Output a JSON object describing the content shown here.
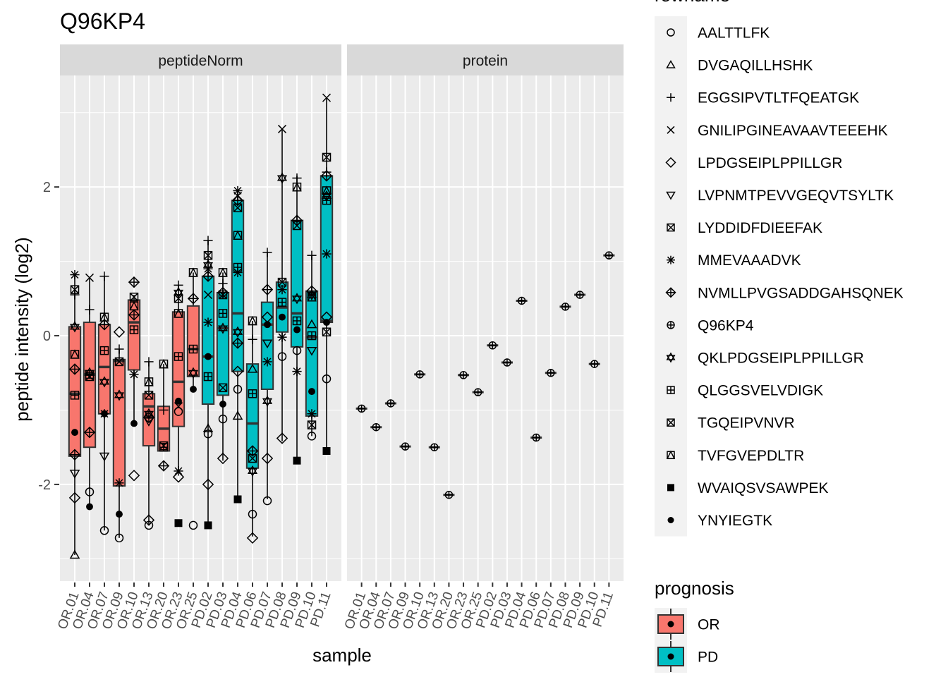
{
  "chart_data": {
    "type": "boxplot",
    "title": "Q96KP4",
    "xlabel": "sample",
    "ylabel": "peptide intensity (log2)",
    "ylim": [
      -3.3,
      3.5
    ],
    "y_ticks": [
      -2,
      0,
      2
    ],
    "panels": [
      "peptideNorm",
      "protein"
    ],
    "samples": [
      "OR.01",
      "OR.04",
      "OR.07",
      "OR.09",
      "OR.10",
      "OR.13",
      "OR.20",
      "OR.23",
      "OR.25",
      "PD.02",
      "PD.03",
      "PD.04",
      "PD.06",
      "PD.07",
      "PD.08",
      "PD.09",
      "PD.10",
      "PD.11"
    ],
    "prognosis": [
      "OR",
      "OR",
      "OR",
      "OR",
      "OR",
      "OR",
      "OR",
      "OR",
      "OR",
      "PD",
      "PD",
      "PD",
      "PD",
      "PD",
      "PD",
      "PD",
      "PD",
      "PD"
    ],
    "boxes": [
      {
        "q1": -1.62,
        "median": -0.78,
        "q3": 0.12,
        "lo": -2.95,
        "hi": 0.82
      },
      {
        "q1": -1.5,
        "median": -0.52,
        "q3": 0.18,
        "lo": -2.3,
        "hi": 0.78
      },
      {
        "q1": -1.05,
        "median": -0.42,
        "q3": 0.15,
        "lo": -2.62,
        "hi": 0.8
      },
      {
        "q1": -2.02,
        "median": -0.34,
        "q3": -0.32,
        "lo": -2.72,
        "hi": -0.18
      },
      {
        "q1": -0.46,
        "median": 0.18,
        "q3": 0.48,
        "lo": -1.18,
        "hi": 0.55
      },
      {
        "q1": -1.48,
        "median": -0.95,
        "q3": -0.78,
        "lo": -2.55,
        "hi": -0.35
      },
      {
        "q1": -1.55,
        "median": -1.25,
        "q3": -0.95,
        "lo": -1.55,
        "hi": -0.38
      },
      {
        "q1": -1.22,
        "median": -0.62,
        "q3": 0.32,
        "lo": -1.85,
        "hi": 0.68
      },
      {
        "q1": -0.55,
        "median": -0.18,
        "q3": 0.4,
        "lo": -0.72,
        "hi": 0.85
      },
      {
        "q1": -0.92,
        "median": -0.28,
        "q3": 0.8,
        "lo": -2.55,
        "hi": 1.28
      },
      {
        "q1": -0.8,
        "median": 0.1,
        "q3": 0.58,
        "lo": -1.68,
        "hi": 0.85
      },
      {
        "q1": -0.48,
        "median": 0.3,
        "q3": 1.82,
        "lo": -2.2,
        "hi": 1.95
      },
      {
        "q1": -1.78,
        "median": -1.18,
        "q3": -0.38,
        "lo": -2.7,
        "hi": 0.2
      },
      {
        "q1": -0.72,
        "median": 0.15,
        "q3": 0.45,
        "lo": -2.2,
        "hi": 1.12
      },
      {
        "q1": 0.05,
        "median": 0.38,
        "q3": 0.72,
        "lo": -1.42,
        "hi": 2.78
      },
      {
        "q1": -0.15,
        "median": 0.3,
        "q3": 1.55,
        "lo": -1.68,
        "hi": 2.15
      },
      {
        "q1": -1.08,
        "median": -0.02,
        "q3": 0.6,
        "lo": -1.35,
        "hi": 1.08
      },
      {
        "q1": 0.18,
        "median": 0.2,
        "q3": 2.15,
        "lo": -1.55,
        "hi": 3.2
      }
    ],
    "peptide_points": [
      [
        [
          -1.3,
          "nfill"
        ],
        [
          0.62,
          "boxx"
        ],
        [
          0.82,
          "ast"
        ],
        [
          -1.6,
          "diamp"
        ],
        [
          -0.8,
          "sqplus"
        ],
        [
          -0.45,
          "diamp"
        ],
        [
          -0.25,
          "sqtri"
        ],
        [
          0.12,
          "star"
        ],
        [
          -1.85,
          "tdown"
        ],
        [
          -2.18,
          "diam"
        ],
        [
          -2.95,
          "tri"
        ],
        [
          0.55,
          "plus"
        ]
      ],
      [
        [
          -2.3,
          "nfill"
        ],
        [
          -2.1,
          "circ"
        ],
        [
          0.78,
          "x"
        ],
        [
          0.35,
          "plus"
        ],
        [
          -0.52,
          "sqplus"
        ],
        [
          -1.3,
          "diamp"
        ],
        [
          -0.5,
          "star"
        ],
        [
          -0.55,
          "boxx"
        ]
      ],
      [
        [
          -1.05,
          "nfill"
        ],
        [
          0.25,
          "sqtri"
        ],
        [
          0.8,
          "plus"
        ],
        [
          -0.2,
          "sqplus"
        ],
        [
          -0.62,
          "star"
        ],
        [
          -1.62,
          "tdown"
        ],
        [
          0.15,
          "diamp"
        ],
        [
          -2.62,
          "circ"
        ],
        [
          -1.05,
          "ast"
        ]
      ],
      [
        [
          -2.4,
          "nfill"
        ],
        [
          -2.72,
          "circ"
        ],
        [
          -1.98,
          "ast"
        ],
        [
          0.05,
          "diam"
        ],
        [
          -0.35,
          "boxx"
        ],
        [
          -0.8,
          "star"
        ],
        [
          -0.18,
          "plus"
        ]
      ],
      [
        [
          -1.18,
          "nfill"
        ],
        [
          0.72,
          "diamp"
        ],
        [
          0.28,
          "diamp"
        ],
        [
          0.08,
          "sqplus"
        ],
        [
          0.52,
          "boxx"
        ],
        [
          -0.52,
          "ast"
        ],
        [
          -1.88,
          "diam"
        ],
        [
          0.4,
          "sqtri"
        ]
      ],
      [
        [
          -2.55,
          "circ"
        ],
        [
          -2.48,
          "diam"
        ],
        [
          -1.05,
          "star"
        ],
        [
          -0.8,
          "boxx"
        ],
        [
          -1.1,
          "diamp"
        ],
        [
          -0.62,
          "sqtri"
        ],
        [
          -0.35,
          "plus"
        ],
        [
          -1.15,
          "tdown"
        ]
      ],
      [
        [
          -1.5,
          "sqplus"
        ],
        [
          -1.75,
          "diamp"
        ],
        [
          -0.38,
          "sqtri"
        ],
        [
          -1.0,
          "plus"
        ],
        [
          -1.48,
          "boxx"
        ]
      ],
      [
        [
          -2.52,
          "sq"
        ],
        [
          -0.88,
          "nfill"
        ],
        [
          -1.02,
          "circ"
        ],
        [
          -1.82,
          "ast"
        ],
        [
          -1.9,
          "diam"
        ],
        [
          0.68,
          "plus"
        ],
        [
          0.5,
          "boxx"
        ],
        [
          0.58,
          "star"
        ],
        [
          -0.28,
          "sqplus"
        ],
        [
          -0.95,
          "x"
        ],
        [
          0.3,
          "sqtri"
        ]
      ],
      [
        [
          -0.72,
          "nfill"
        ],
        [
          -2.55,
          "circ"
        ],
        [
          0.85,
          "sqtri"
        ],
        [
          0.5,
          "diamp"
        ],
        [
          -0.18,
          "sqplus"
        ],
        [
          -0.5,
          "star"
        ]
      ],
      [
        [
          -2.55,
          "sq"
        ],
        [
          -1.32,
          "circ"
        ],
        [
          -2.0,
          "diam"
        ],
        [
          1.28,
          "plus"
        ],
        [
          1.08,
          "boxx"
        ],
        [
          0.9,
          "ast"
        ],
        [
          0.55,
          "x"
        ],
        [
          0.18,
          "ast"
        ],
        [
          -0.55,
          "sqplus"
        ],
        [
          -0.28,
          "nfill"
        ],
        [
          -1.25,
          "tri"
        ],
        [
          0.8,
          "diamp"
        ],
        [
          0.95,
          "star"
        ]
      ],
      [
        [
          -0.92,
          "nfill"
        ],
        [
          -1.12,
          "circ"
        ],
        [
          -1.65,
          "diam"
        ],
        [
          0.85,
          "sqtri"
        ],
        [
          0.7,
          "plus"
        ],
        [
          0.3,
          "sqplus"
        ],
        [
          0.58,
          "diamp"
        ],
        [
          0.1,
          "star"
        ],
        [
          -0.7,
          "boxx"
        ],
        [
          0.55,
          "boxx"
        ]
      ],
      [
        [
          -2.2,
          "sq"
        ],
        [
          -0.72,
          "circ"
        ],
        [
          -1.08,
          "tri"
        ],
        [
          1.95,
          "ast"
        ],
        [
          1.88,
          "x"
        ],
        [
          1.82,
          "diamp"
        ],
        [
          1.72,
          "boxx"
        ],
        [
          1.35,
          "sqtri"
        ],
        [
          0.92,
          "sqplus"
        ],
        [
          0.85,
          "ast"
        ],
        [
          0.05,
          "star"
        ],
        [
          -0.48,
          "diam"
        ],
        [
          -0.1,
          "diamp"
        ]
      ],
      [
        [
          -2.4,
          "circ"
        ],
        [
          -2.72,
          "diam"
        ],
        [
          -1.82,
          "star"
        ],
        [
          -1.65,
          "boxx"
        ],
        [
          -0.78,
          "sqplus"
        ],
        [
          -0.45,
          "tri"
        ],
        [
          0.2,
          "sqtri"
        ],
        [
          -0.05,
          "plus"
        ],
        [
          -1.55,
          "diamp"
        ]
      ],
      [
        [
          -2.22,
          "circ"
        ],
        [
          -1.65,
          "diam"
        ],
        [
          -0.88,
          "star"
        ],
        [
          -0.35,
          "ast"
        ],
        [
          0.15,
          "nfill"
        ],
        [
          0.62,
          "diamp"
        ],
        [
          1.12,
          "plus"
        ],
        [
          0.25,
          "diam"
        ],
        [
          -0.1,
          "tdown"
        ]
      ],
      [
        [
          -0.28,
          "circ"
        ],
        [
          -1.38,
          "diam"
        ],
        [
          2.78,
          "x"
        ],
        [
          2.12,
          "star"
        ],
        [
          0.72,
          "boxx"
        ],
        [
          0.62,
          "ast"
        ],
        [
          0.45,
          "sqplus"
        ],
        [
          0.25,
          "nfill"
        ],
        [
          -0.02,
          "ast"
        ]
      ],
      [
        [
          -1.68,
          "sq"
        ],
        [
          0.08,
          "nfill"
        ],
        [
          -0.48,
          "ast"
        ],
        [
          2.12,
          "plus"
        ],
        [
          2.0,
          "sqtri"
        ],
        [
          1.55,
          "diamp"
        ],
        [
          0.5,
          "star"
        ],
        [
          0.2,
          "sqplus"
        ],
        [
          -0.2,
          "circ"
        ],
        [
          1.48,
          "boxx"
        ]
      ],
      [
        [
          -0.75,
          "nfill"
        ],
        [
          -1.35,
          "circ"
        ],
        [
          -1.2,
          "boxx"
        ],
        [
          -1.05,
          "ast"
        ],
        [
          -0.2,
          "tdown"
        ],
        [
          0.15,
          "tri"
        ],
        [
          0.6,
          "diamp"
        ],
        [
          0.55,
          "star"
        ],
        [
          1.08,
          "plus"
        ],
        [
          0.52,
          "sqtri"
        ],
        [
          0.0,
          "sqplus"
        ]
      ],
      [
        [
          -1.55,
          "sq"
        ],
        [
          -0.58,
          "circ"
        ],
        [
          3.2,
          "x"
        ],
        [
          2.4,
          "boxx"
        ],
        [
          2.15,
          "diamp"
        ],
        [
          1.95,
          "sqtri"
        ],
        [
          1.88,
          "star"
        ],
        [
          1.82,
          "sqplus"
        ],
        [
          1.1,
          "ast"
        ],
        [
          0.25,
          "diam"
        ],
        [
          0.05,
          "boxx"
        ],
        [
          0.18,
          "nfill"
        ],
        [
          2.2,
          "plus"
        ]
      ]
    ],
    "protein_values": [
      -0.98,
      -1.23,
      -0.91,
      -1.49,
      -0.52,
      -1.5,
      -2.14,
      -0.53,
      -0.76,
      -0.13,
      -0.36,
      0.47,
      -1.37,
      -0.5,
      0.39,
      0.55,
      -0.38,
      1.08
    ],
    "legend_rowname": {
      "title": "rowname",
      "entries": [
        {
          "label": "AALTTLFK",
          "shape": "circ"
        },
        {
          "label": "DVGAQILLHSHK",
          "shape": "tri"
        },
        {
          "label": "EGGSIPVTLTFQEATGK",
          "shape": "plus"
        },
        {
          "label": "GNILIPGINEAVAAVTEEEHK",
          "shape": "x"
        },
        {
          "label": "LPDGSEIPLPPILLGR",
          "shape": "diam"
        },
        {
          "label": "LVPNMTPEVVGEQVTSYLTK",
          "shape": "tdown"
        },
        {
          "label": "LYDDIDFDIEEFAK",
          "shape": "boxx"
        },
        {
          "label": "MMEVAAADVK",
          "shape": "ast"
        },
        {
          "label": "NVMLLPVGSADDGAHSQNEK",
          "shape": "diamp"
        },
        {
          "label": "Q96KP4",
          "shape": "cplus"
        },
        {
          "label": "QKLPDGSEIPLPPILLGR",
          "shape": "star"
        },
        {
          "label": "QLGGSVELVDIGK",
          "shape": "sqplus"
        },
        {
          "label": "TGQEIPVNVR",
          "shape": "boxx"
        },
        {
          "label": "TVFGVEPDLTR",
          "shape": "sqtri"
        },
        {
          "label": "WVAIQSVSAWPEK",
          "shape": "sq"
        },
        {
          "label": "YNYIEGTK",
          "shape": "nfill"
        }
      ]
    },
    "legend_prognosis": {
      "title": "prognosis",
      "entries": [
        {
          "label": "OR",
          "color": "#F8766D"
        },
        {
          "label": "PD",
          "color": "#00BFC4"
        }
      ]
    },
    "colors": {
      "OR": "#F8766D",
      "PD": "#00BFC4",
      "panel_bg": "#EBEBEB",
      "strip_bg": "#D9D9D9"
    }
  }
}
